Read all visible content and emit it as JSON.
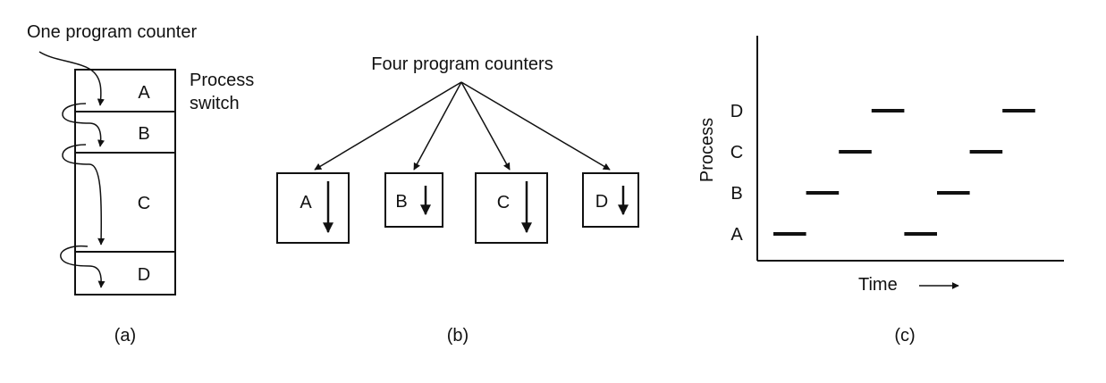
{
  "panel_a": {
    "title": "One program counter",
    "switch_line1": "Process",
    "switch_line2": "switch",
    "blocks": [
      "A",
      "B",
      "C",
      "D"
    ],
    "caption": "(a)"
  },
  "panel_b": {
    "title": "Four program counters",
    "boxes": [
      "A",
      "B",
      "C",
      "D"
    ],
    "caption": "(b)"
  },
  "panel_c": {
    "ylabel": "Process",
    "xlabel": "Time",
    "caption": "(c)"
  },
  "chart_data": {
    "type": "timeline",
    "categories": [
      "A",
      "B",
      "C",
      "D"
    ],
    "ylabel": "Process",
    "xlabel": "Time",
    "segments": [
      {
        "process": "A",
        "start": 0,
        "end": 1
      },
      {
        "process": "B",
        "start": 1,
        "end": 2
      },
      {
        "process": "C",
        "start": 2,
        "end": 3
      },
      {
        "process": "D",
        "start": 3,
        "end": 4
      },
      {
        "process": "A",
        "start": 4,
        "end": 5
      },
      {
        "process": "B",
        "start": 5,
        "end": 6
      },
      {
        "process": "C",
        "start": 6,
        "end": 7
      },
      {
        "process": "D",
        "start": 7,
        "end": 8
      }
    ]
  }
}
